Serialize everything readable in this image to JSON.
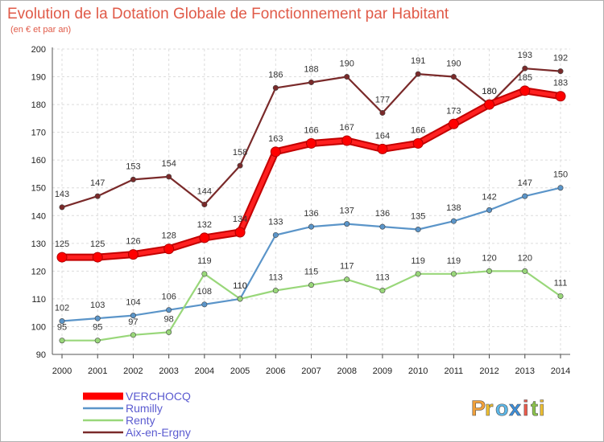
{
  "chart_data": {
    "type": "line",
    "title": "Evolution de la Dotation Globale de Fonctionnement par Habitant",
    "subtitle": "(en € et par an)",
    "x": [
      "2000",
      "2001",
      "2002",
      "2003",
      "2004",
      "2005",
      "2006",
      "2007",
      "2008",
      "2009",
      "2010",
      "2011",
      "2012",
      "2013",
      "2014"
    ],
    "ylim": [
      90,
      200
    ],
    "yticks": [
      90,
      100,
      110,
      120,
      130,
      140,
      150,
      160,
      170,
      180,
      190,
      200
    ],
    "grid": true,
    "legend_position": "bottom-left",
    "series": [
      {
        "name": "Aix-en-Ergny",
        "color": "#7a2a2a",
        "values": [
          143,
          147,
          153,
          154,
          144,
          158,
          186,
          188,
          190,
          177,
          191,
          190,
          180,
          193,
          192
        ]
      },
      {
        "name": "Rumilly",
        "color": "#5b95c9",
        "values": [
          102,
          103,
          104,
          106,
          108,
          110,
          133,
          136,
          137,
          136,
          135,
          138,
          142,
          147,
          150
        ]
      },
      {
        "name": "Renty",
        "color": "#99d77a",
        "values": [
          95,
          95,
          97,
          98,
          119,
          110,
          113,
          115,
          117,
          113,
          119,
          119,
          120,
          120,
          111
        ]
      },
      {
        "name": "VERCHOCQ",
        "color": "#ff0000",
        "values": [
          125,
          125,
          126,
          128,
          132,
          134,
          163,
          166,
          167,
          164,
          166,
          173,
          180,
          185,
          183
        ]
      }
    ],
    "legend_order": [
      "VERCHOCQ",
      "Rumilly",
      "Renty",
      "Aix-en-Ergny"
    ]
  },
  "brand": {
    "letters": [
      "P",
      "r",
      "o",
      "x",
      "i",
      "t",
      "i"
    ],
    "colors": [
      "#f2a13a",
      "#f0c030",
      "#5bb7e8",
      "#3c8fdc",
      "#ee5a4a",
      "#8bc34a",
      "#f0c030"
    ]
  }
}
